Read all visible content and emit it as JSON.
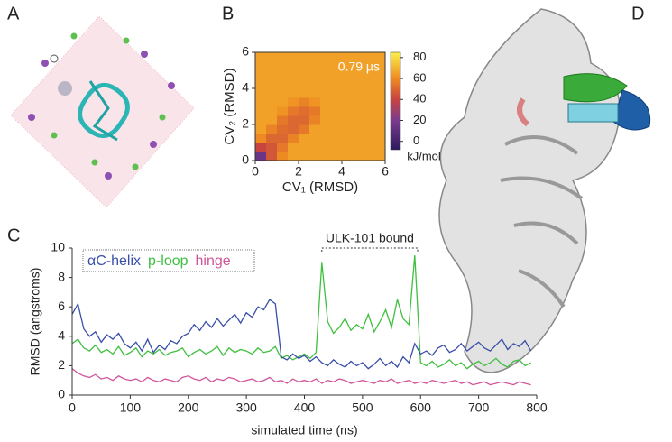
{
  "panel_labels": [
    "A",
    "B",
    "C",
    "D"
  ],
  "chart_data": [
    {
      "type": "heatmap",
      "panel": "B",
      "xlabel": "CV₁ (RMSD)",
      "ylabel": "CV₂ (RMSD)",
      "annotation": "0.79 µs",
      "colorbar_label": "kJ/mol",
      "colorbar_lim": [
        -8,
        85
      ],
      "colorbar_ticks": [
        0,
        20,
        40,
        60,
        80
      ],
      "colorscale": [
        [
          0,
          "#3b1f6e"
        ],
        [
          20,
          "#7a3b8f"
        ],
        [
          40,
          "#c8443f"
        ],
        [
          60,
          "#ee8a22"
        ],
        [
          80,
          "#f8e63a"
        ]
      ],
      "xlim": [
        0,
        6
      ],
      "ylim": [
        0,
        6
      ],
      "xticks": [
        0,
        2,
        4,
        6
      ],
      "yticks": [
        0,
        2,
        4,
        6
      ],
      "x": [
        0.25,
        0.75,
        1.25,
        1.75,
        2.25,
        2.75,
        3.25,
        3.75,
        4.25,
        4.75,
        5.25,
        5.75
      ],
      "y": [
        0.25,
        0.75,
        1.25,
        1.75,
        2.25,
        2.75,
        3.25,
        3.75,
        4.25,
        4.75,
        5.25,
        5.75
      ],
      "z": [
        [
          15,
          45,
          60,
          65,
          65,
          65,
          65,
          65,
          65,
          65,
          65,
          65
        ],
        [
          40,
          45,
          55,
          65,
          65,
          65,
          65,
          65,
          65,
          65,
          65,
          65
        ],
        [
          60,
          50,
          50,
          58,
          65,
          65,
          65,
          65,
          65,
          65,
          65,
          65
        ],
        [
          65,
          58,
          52,
          50,
          55,
          65,
          65,
          65,
          65,
          65,
          65,
          65
        ],
        [
          65,
          65,
          55,
          50,
          50,
          58,
          65,
          65,
          65,
          65,
          65,
          65
        ],
        [
          65,
          65,
          62,
          55,
          52,
          55,
          65,
          65,
          65,
          65,
          65,
          65
        ],
        [
          65,
          65,
          65,
          62,
          58,
          62,
          65,
          65,
          65,
          65,
          65,
          65
        ],
        [
          65,
          65,
          65,
          65,
          65,
          65,
          65,
          65,
          65,
          65,
          65,
          65
        ],
        [
          65,
          65,
          65,
          65,
          65,
          65,
          65,
          65,
          65,
          65,
          65,
          65
        ],
        [
          65,
          65,
          65,
          65,
          65,
          65,
          65,
          65,
          65,
          65,
          65,
          65
        ],
        [
          65,
          65,
          65,
          65,
          65,
          65,
          65,
          65,
          65,
          65,
          65,
          65
        ],
        [
          65,
          65,
          65,
          65,
          65,
          65,
          65,
          65,
          65,
          65,
          65,
          65
        ]
      ]
    },
    {
      "type": "line",
      "panel": "C",
      "xlabel": "simulated time (ns)",
      "ylabel": "RMSD (angstroms)",
      "xlim": [
        0,
        800
      ],
      "ylim": [
        0,
        10
      ],
      "xticks": [
        0,
        100,
        200,
        300,
        400,
        500,
        600,
        700,
        800
      ],
      "yticks": [
        0,
        2,
        4,
        6,
        8,
        10
      ],
      "annotation": {
        "text": "ULK-101 bound",
        "x": [
          430,
          595
        ],
        "y": 10
      },
      "x": [
        0,
        10,
        20,
        30,
        40,
        50,
        60,
        70,
        80,
        90,
        100,
        110,
        120,
        130,
        140,
        150,
        160,
        170,
        180,
        190,
        200,
        210,
        220,
        230,
        240,
        250,
        260,
        270,
        280,
        290,
        300,
        310,
        320,
        330,
        340,
        350,
        360,
        370,
        380,
        390,
        400,
        410,
        420,
        430,
        440,
        450,
        460,
        470,
        480,
        490,
        500,
        510,
        520,
        530,
        540,
        550,
        560,
        570,
        580,
        590,
        600,
        610,
        620,
        630,
        640,
        650,
        660,
        670,
        680,
        690,
        700,
        710,
        720,
        730,
        740,
        750,
        760,
        770,
        780,
        790
      ],
      "series": [
        {
          "name": "p-loop",
          "color": "#3fbf3f",
          "values": [
            3.5,
            3.8,
            3.2,
            3.0,
            3.4,
            2.9,
            3.1,
            2.8,
            3.3,
            2.7,
            2.9,
            3.2,
            2.6,
            3.0,
            2.8,
            3.1,
            2.7,
            2.9,
            3.0,
            3.2,
            2.6,
            2.9,
            3.1,
            2.8,
            3.0,
            3.3,
            2.7,
            3.2,
            2.9,
            3.1,
            3.0,
            2.8,
            3.2,
            2.9,
            3.0,
            3.3,
            2.5,
            2.7,
            2.4,
            2.6,
            2.8,
            2.5,
            2.9,
            9.0,
            5.0,
            4.2,
            4.6,
            5.2,
            4.4,
            4.8,
            4.5,
            5.5,
            4.3,
            5.0,
            5.8,
            4.6,
            6.5,
            5.2,
            4.8,
            9.5,
            2.2,
            2.0,
            2.3,
            1.9,
            2.1,
            2.4,
            2.0,
            2.2,
            1.8,
            2.1,
            2.3,
            2.0,
            2.2,
            2.5,
            2.1,
            1.9,
            2.3,
            2.4,
            2.0,
            2.2
          ]
        },
        {
          "name": "αC-helix",
          "color": "#3a4fa8",
          "values": [
            5.5,
            6.2,
            4.5,
            4.0,
            4.3,
            3.6,
            4.1,
            3.8,
            4.2,
            3.5,
            3.2,
            3.6,
            3.0,
            3.8,
            2.9,
            3.4,
            3.1,
            3.7,
            3.5,
            4.0,
            4.2,
            4.8,
            4.4,
            5.0,
            4.6,
            5.2,
            4.7,
            5.1,
            5.5,
            4.9,
            5.6,
            5.3,
            6.0,
            5.8,
            6.5,
            6.2,
            2.6,
            2.4,
            2.8,
            2.5,
            2.7,
            2.3,
            2.6,
            2.2,
            2.0,
            2.4,
            2.1,
            1.9,
            2.3,
            2.0,
            2.2,
            1.8,
            2.1,
            2.5,
            2.0,
            2.3,
            1.9,
            2.6,
            2.2,
            3.5,
            2.8,
            3.0,
            2.7,
            3.2,
            3.4,
            2.9,
            3.1,
            3.5,
            3.0,
            3.3,
            3.6,
            3.2,
            3.0,
            3.4,
            3.8,
            3.1,
            3.5,
            3.3,
            3.7,
            3.0
          ]
        },
        {
          "name": "hinge",
          "color": "#d0559a",
          "values": [
            1.8,
            1.5,
            1.3,
            1.2,
            1.4,
            1.1,
            1.2,
            1.0,
            1.3,
            1.1,
            1.0,
            1.1,
            0.9,
            1.2,
            1.0,
            0.9,
            1.1,
            1.0,
            0.9,
            1.2,
            1.3,
            1.1,
            1.0,
            1.2,
            0.9,
            1.1,
            1.0,
            1.2,
            1.1,
            0.9,
            1.0,
            1.1,
            0.9,
            1.0,
            1.2,
            0.9,
            1.0,
            0.8,
            1.1,
            0.9,
            1.0,
            0.9,
            1.1,
            0.8,
            1.0,
            0.9,
            1.1,
            1.0,
            0.8,
            0.9,
            1.0,
            0.9,
            0.8,
            1.0,
            0.9,
            1.1,
            0.8,
            0.9,
            1.0,
            0.8,
            0.9,
            0.8,
            1.0,
            0.9,
            0.8,
            0.9,
            1.0,
            0.8,
            0.9,
            0.7,
            0.8,
            0.9,
            0.7,
            0.8,
            0.9,
            0.8,
            0.7,
            0.9,
            0.8,
            0.7
          ]
        }
      ],
      "legend_order": [
        1,
        0,
        2
      ]
    }
  ]
}
